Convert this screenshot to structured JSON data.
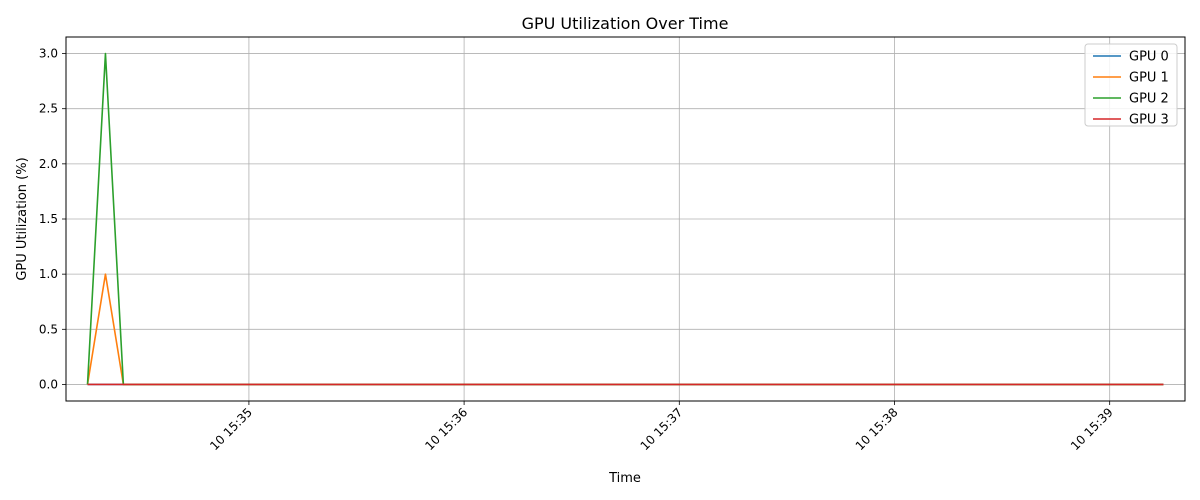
{
  "chart_data": {
    "type": "line",
    "title": "GPU Utilization Over Time",
    "xlabel": "Time",
    "ylabel": "GPU Utilization (%)",
    "x_axis_kind": "time",
    "x": [
      "15:34:15",
      "15:34:20",
      "15:34:25",
      "15:39:15"
    ],
    "x_ticks": [
      "10 15:35",
      "10 15:36",
      "10 15:37",
      "10 15:38",
      "10 15:39"
    ],
    "y_ticks": [
      "0.0",
      "0.5",
      "1.0",
      "1.5",
      "2.0",
      "2.5",
      "3.0"
    ],
    "ylim": [
      -0.15,
      3.15
    ],
    "xlim": [
      "15:34:09",
      "15:39:21"
    ],
    "grid": true,
    "legend_position": "top-right",
    "series": [
      {
        "name": "GPU 0",
        "color": "#1f77b4",
        "values": [
          0,
          0,
          0,
          0
        ]
      },
      {
        "name": "GPU 1",
        "color": "#ff7f0e",
        "values": [
          0,
          1,
          0,
          0
        ]
      },
      {
        "name": "GPU 2",
        "color": "#2ca02c",
        "values": [
          0,
          3,
          0,
          0
        ]
      },
      {
        "name": "GPU 3",
        "color": "#d62728",
        "values": [
          0,
          0,
          0,
          0
        ]
      }
    ]
  }
}
